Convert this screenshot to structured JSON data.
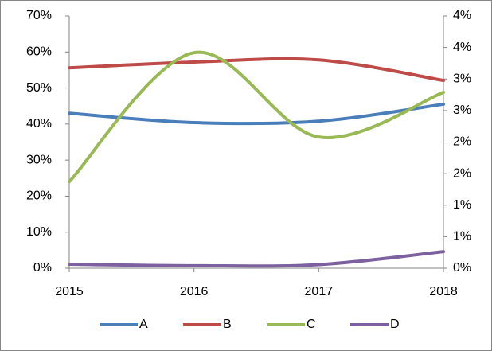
{
  "chart_data": {
    "type": "line",
    "smooth": true,
    "categories": [
      "2015",
      "2016",
      "2017",
      "2018"
    ],
    "series": [
      {
        "name": "A",
        "color": "#4a7ebb",
        "values": [
          43,
          40.4,
          40.8,
          45.5
        ]
      },
      {
        "name": "B",
        "color": "#be4b48",
        "values": [
          55.6,
          57.2,
          57.8,
          52.1
        ]
      },
      {
        "name": "C",
        "color": "#98b954",
        "values": [
          24,
          59.8,
          36.4,
          48.8
        ]
      },
      {
        "name": "D",
        "color": "#7d60a0",
        "values": [
          1.1,
          0.7,
          1.0,
          4.6
        ]
      }
    ],
    "ylim": [
      0,
      70
    ],
    "yticks": [
      {
        "value": 0,
        "label": "0%"
      },
      {
        "value": 10,
        "label": "10%"
      },
      {
        "value": 20,
        "label": "20%"
      },
      {
        "value": 30,
        "label": "30%"
      },
      {
        "value": 40,
        "label": "40%"
      },
      {
        "value": 50,
        "label": "50%"
      },
      {
        "value": 60,
        "label": "60%"
      },
      {
        "value": 70,
        "label": "70%"
      }
    ],
    "y2lim": [
      0,
      4
    ],
    "y2ticks": [
      {
        "value": 0,
        "label": "0%"
      },
      {
        "value": 0.5,
        "label": "1%"
      },
      {
        "value": 1,
        "label": "1%"
      },
      {
        "value": 1.5,
        "label": "2%"
      },
      {
        "value": 2,
        "label": "2%"
      },
      {
        "value": 2.5,
        "label": "3%"
      },
      {
        "value": 3,
        "label": "3%"
      },
      {
        "value": 3.5,
        "label": "4%"
      },
      {
        "value": 4,
        "label": "4%"
      }
    ],
    "legend": "bottom"
  }
}
